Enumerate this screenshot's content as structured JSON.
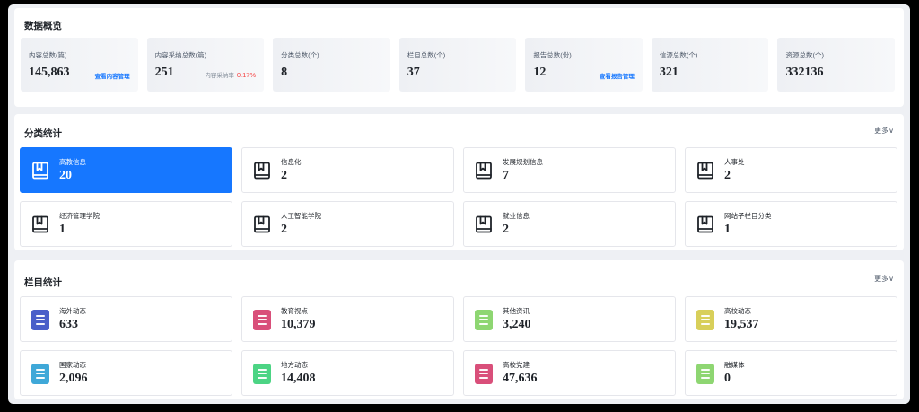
{
  "overview": {
    "title": "数据概览",
    "stats": [
      {
        "label": "内容总数(篇)",
        "value": "145,863",
        "link": "查看内容管理"
      },
      {
        "label": "内容采纳总数(篇)",
        "value": "251",
        "sub_label": "内容采纳率",
        "sub_value": "0.17%"
      },
      {
        "label": "分类总数(个)",
        "value": "8"
      },
      {
        "label": "栏目总数(个)",
        "value": "37"
      },
      {
        "label": "报告总数(份)",
        "value": "12",
        "link": "查看报告管理"
      },
      {
        "label": "信源总数(个)",
        "value": "321"
      },
      {
        "label": "资源总数(个)",
        "value": "332136"
      }
    ]
  },
  "category": {
    "title": "分类统计",
    "more": "更多∨",
    "items": [
      {
        "name": "高教信息",
        "value": "20",
        "active": true,
        "icon": "book-icon"
      },
      {
        "name": "信息化",
        "value": "2",
        "icon": "book-icon"
      },
      {
        "name": "发展规划信息",
        "value": "7",
        "icon": "book-icon"
      },
      {
        "name": "人事处",
        "value": "2",
        "icon": "book-icon"
      },
      {
        "name": "经济管理学院",
        "value": "1",
        "icon": "book-icon"
      },
      {
        "name": "人工智能学院",
        "value": "2",
        "icon": "book-icon"
      },
      {
        "name": "就业信息",
        "value": "2",
        "icon": "book-icon"
      },
      {
        "name": "网站子栏目分类",
        "value": "1",
        "icon": "book-icon"
      }
    ]
  },
  "column": {
    "title": "栏目统计",
    "more": "更多∨",
    "items": [
      {
        "name": "海外动态",
        "value": "633",
        "color": "#4a5fc9",
        "icon": "document-icon"
      },
      {
        "name": "教育视点",
        "value": "10,379",
        "color": "#d94f7a",
        "icon": "document-icon"
      },
      {
        "name": "其他资讯",
        "value": "3,240",
        "color": "#8ed672",
        "icon": "document-icon"
      },
      {
        "name": "高校动态",
        "value": "19,537",
        "color": "#d8cf5a",
        "icon": "document-icon"
      },
      {
        "name": "国家动态",
        "value": "2,096",
        "color": "#3fa8d8",
        "icon": "document-icon"
      },
      {
        "name": "地方动态",
        "value": "14,408",
        "color": "#4cd484",
        "icon": "document-icon"
      },
      {
        "name": "高校党建",
        "value": "47,636",
        "color": "#d94f7a",
        "icon": "document-icon"
      },
      {
        "name": "融媒体",
        "value": "0",
        "color": "#8ed672",
        "icon": "document-icon"
      }
    ]
  }
}
